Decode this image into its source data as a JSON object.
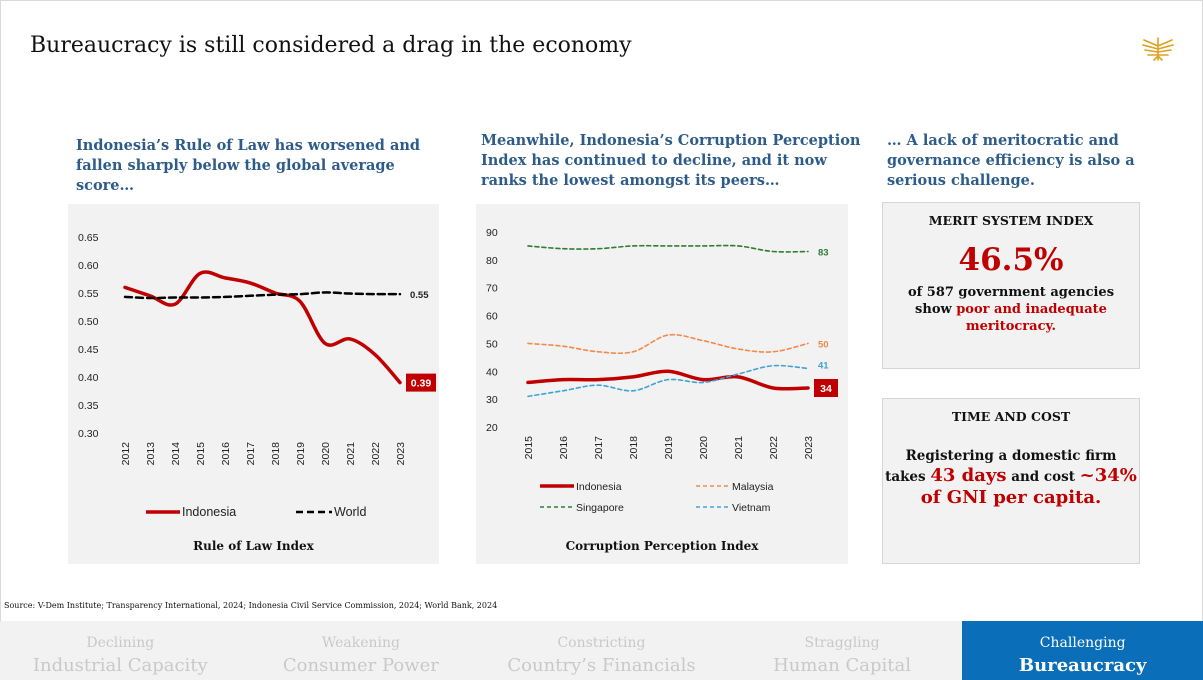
{
  "slide": {
    "title": "Bureaucracy is still considered a drag in the economy",
    "source": "Source: V-Dem Institute; Transparency International, 2024; Indonesia Civil Service Commission, 2024; World Bank, 2024"
  },
  "col1": {
    "subtitle": "Indonesia’s Rule of Law has worsened and fallen sharply below the global average score…"
  },
  "col2": {
    "subtitle": "Meanwhile, Indonesia’s Corruption Perception Index has continued to decline, and it now ranks the lowest amongst its peers…"
  },
  "col3": {
    "subtitle": "… A lack of meritocratic and governance efficiency is also a serious challenge.",
    "merit": {
      "heading": "MERIT SYSTEM INDEX",
      "value": "46.5%",
      "line1": "of 587 government agencies",
      "line2_pre": "show ",
      "line2_red": "poor and inadequate",
      "line3_red": "meritocracy."
    },
    "time": {
      "heading": "TIME AND COST",
      "line1": "Registering a domestic firm",
      "pre": "takes ",
      "days": "43 days",
      "mid": " and cost ",
      "cost": "~34%",
      "gni": "of GNI per capita."
    }
  },
  "colors": {
    "indonesia": "#c00000",
    "world": "#000000",
    "malaysia": "#f4894b",
    "singapore": "#2e7d32",
    "vietnam": "#3fa3d8",
    "accent_blue": "#2e5c8a",
    "active_tab": "#0a6fb8"
  },
  "chart_data": [
    {
      "type": "line",
      "title": "Rule of Law Index",
      "x": [
        "2012",
        "2013",
        "2014",
        "2015",
        "2016",
        "2017",
        "2018",
        "2019",
        "2020",
        "2021",
        "2022",
        "2023"
      ],
      "ylim": [
        0.3,
        0.65
      ],
      "yticks": [
        "0.30",
        "0.35",
        "0.40",
        "0.45",
        "0.50",
        "0.55",
        "0.60",
        "0.65"
      ],
      "series": [
        {
          "name": "Indonesia",
          "values": [
            0.56,
            0.545,
            0.53,
            0.585,
            0.577,
            0.568,
            0.55,
            0.535,
            0.46,
            0.468,
            0.44,
            0.39
          ],
          "end_label": "0.39"
        },
        {
          "name": "World",
          "values": [
            0.543,
            0.541,
            0.542,
            0.542,
            0.543,
            0.545,
            0.547,
            0.548,
            0.551,
            0.549,
            0.548,
            0.548
          ],
          "end_label": "0.55"
        }
      ],
      "legend": "bottom",
      "grid": false
    },
    {
      "type": "line",
      "title": "Corruption Perception Index",
      "x": [
        "2015",
        "2016",
        "2017",
        "2018",
        "2019",
        "2020",
        "2021",
        "2022",
        "2023"
      ],
      "ylim": [
        20,
        90
      ],
      "yticks": [
        "20",
        "30",
        "40",
        "50",
        "60",
        "70",
        "80",
        "90"
      ],
      "series": [
        {
          "name": "Indonesia",
          "values": [
            36,
            37,
            37,
            38,
            40,
            37,
            38,
            34,
            34
          ],
          "end_label": "34"
        },
        {
          "name": "Malaysia",
          "values": [
            50,
            49,
            47,
            47,
            53,
            51,
            48,
            47,
            50
          ],
          "end_label": "50"
        },
        {
          "name": "Singapore",
          "values": [
            85,
            84,
            84,
            85,
            85,
            85,
            85,
            83,
            83
          ],
          "end_label": "83"
        },
        {
          "name": "Vietnam",
          "values": [
            31,
            33,
            35,
            33,
            37,
            36,
            39,
            42,
            41
          ],
          "end_label": "41"
        }
      ],
      "legend": "bottom",
      "grid": false
    }
  ],
  "tabs": [
    {
      "line1": "Declining",
      "line2": "Industrial Capacity"
    },
    {
      "line1": "Weakening",
      "line2": "Consumer Power"
    },
    {
      "line1": "Constricting",
      "line2": "Country’s Financials"
    },
    {
      "line1": "Straggling",
      "line2": "Human Capital"
    },
    {
      "line1": "Challenging",
      "line2": "Bureaucracy"
    }
  ]
}
